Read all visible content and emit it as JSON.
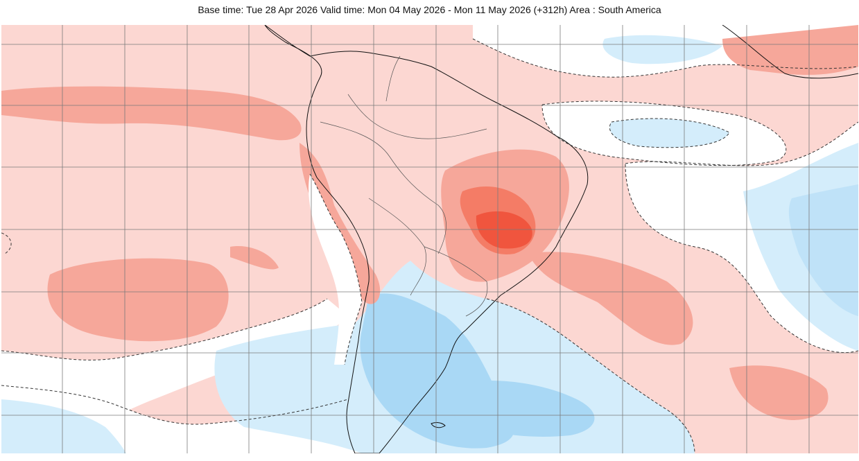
{
  "header": {
    "title": "Base time: Tue 28 Apr 2026 Valid time: Mon 04 May 2026 - Mon 11 May 2026 (+312h) Area : South America"
  },
  "map": {
    "region": "South America",
    "colors": {
      "ocean_background": "#fcd7d2",
      "warm_light": "#fcd7d2",
      "warm_medium": "#f6a79a",
      "warm_strong": "#f47c66",
      "warm_max": "#f0553e",
      "neutral": "#ffffff",
      "cold_light": "#d4edfb",
      "cold_medium": "#a9d8f5",
      "gridline": "#7a7a7a",
      "coastline": "#111111"
    }
  }
}
